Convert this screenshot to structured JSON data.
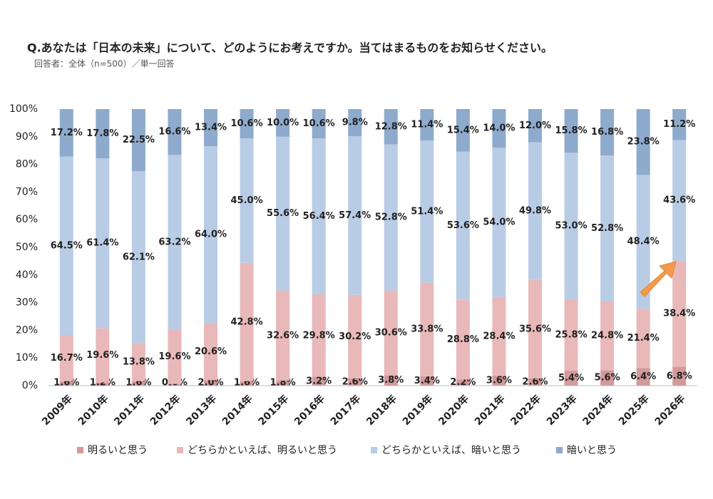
{
  "chart_data": {
    "type": "stacked-bar",
    "title": "Q.あなたは「日本の未来」について、どのようにお考えですか。当てはまるものをお知らせください。",
    "subtitle": "回答者：全体（n=500）／単一回答",
    "categories": [
      "2009年",
      "2010年",
      "2011年",
      "2012年",
      "2013年",
      "2014年",
      "2015年",
      "2016年",
      "2017年",
      "2018年",
      "2019年",
      "2020年",
      "2021年",
      "2022年",
      "2023年",
      "2024年",
      "2025年",
      "2026年"
    ],
    "series": [
      {
        "name": "明るいと思う",
        "color": "#d4999a",
        "values": [
          1.6,
          1.2,
          1.6,
          0.6,
          2.0,
          1.6,
          1.8,
          3.2,
          2.6,
          3.8,
          3.4,
          2.2,
          3.6,
          2.6,
          5.4,
          5.6,
          6.4,
          6.8
        ],
        "value_labels": [
          "1.6%",
          "1.2%",
          "1.6%",
          "0.6%",
          "2.0%",
          "1.6%",
          "1.8%",
          "3.2%",
          "2.6%",
          "3.8%",
          "3.4%",
          "2.2%",
          "3.6%",
          "2.6%",
          "5.4%",
          "5.6%",
          "6.4%",
          "6.8%"
        ]
      },
      {
        "name": "どちらかといえば、明るいと思う",
        "color": "#e9b8b8",
        "values": [
          16.7,
          19.6,
          13.8,
          19.6,
          20.6,
          42.8,
          32.6,
          29.8,
          30.2,
          30.6,
          33.8,
          28.8,
          28.4,
          35.6,
          25.8,
          24.8,
          21.4,
          38.4
        ],
        "value_labels": [
          "16.7%",
          "19.6%",
          "13.8%",
          "19.6%",
          "20.6%",
          "42.8%",
          "32.6%",
          "29.8%",
          "30.2%",
          "30.6%",
          "33.8%",
          "28.8%",
          "28.4%",
          "35.6%",
          "25.8%",
          "24.8%",
          "21.4%",
          "38.4%"
        ]
      },
      {
        "name": "どちらかといえば、暗いと思う",
        "color": "#b9cce5",
        "values": [
          64.5,
          61.4,
          62.1,
          63.2,
          64.0,
          45.0,
          55.6,
          56.4,
          57.4,
          52.8,
          51.4,
          53.6,
          54.0,
          49.8,
          53.0,
          52.8,
          48.4,
          43.6
        ],
        "value_labels": [
          "64.5%",
          "61.4%",
          "62.1%",
          "63.2%",
          "64.0%",
          "45.0%",
          "55.6%",
          "56.4%",
          "57.4%",
          "52.8%",
          "51.4%",
          "53.6%",
          "54.0%",
          "49.8%",
          "53.0%",
          "52.8%",
          "48.4%",
          "43.6%"
        ]
      },
      {
        "name": "暗いと思う",
        "color": "#8eaacc",
        "values": [
          17.2,
          17.8,
          22.5,
          16.6,
          13.4,
          10.6,
          10.0,
          10.6,
          9.8,
          12.8,
          11.4,
          15.4,
          14.0,
          12.0,
          15.8,
          16.8,
          23.8,
          11.2
        ],
        "value_labels": [
          "17.2%",
          "17.8%",
          "22.5%",
          "16.6%",
          "13.4%",
          "10.6%",
          "10.0%",
          "10.6%",
          "9.8%",
          "12.8%",
          "11.4%",
          "15.4%",
          "14.0%",
          "12.0%",
          "15.8%",
          "16.8%",
          "23.8%",
          "11.2%"
        ]
      }
    ],
    "ylim": [
      0,
      100
    ],
    "yticks": [
      {
        "value": 0,
        "label": "0%"
      },
      {
        "value": 10,
        "label": "10%"
      },
      {
        "value": 20,
        "label": "20%"
      },
      {
        "value": 30,
        "label": "30%"
      },
      {
        "value": 40,
        "label": "40%"
      },
      {
        "value": 50,
        "label": "50%"
      },
      {
        "value": 60,
        "label": "60%"
      },
      {
        "value": 70,
        "label": "70%"
      },
      {
        "value": 80,
        "label": "80%"
      },
      {
        "value": 90,
        "label": "90%"
      },
      {
        "value": 100,
        "label": "100%"
      }
    ],
    "grid": false,
    "legend": "bottom"
  }
}
